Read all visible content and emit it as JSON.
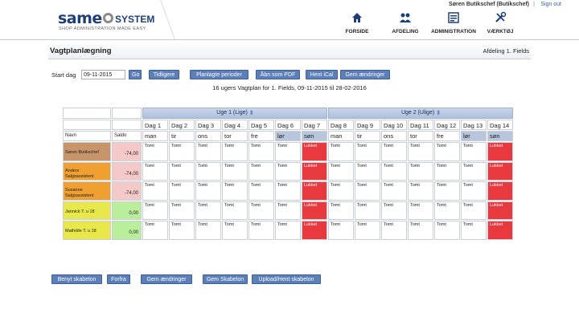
{
  "header": {
    "logo": {
      "brand_same": "same",
      "brand_system": "SYSTEM",
      "tagline": "SHOP ADMINISTRATION MADE EASY"
    },
    "user": "Søren Butikschef (Butikschef)",
    "separator": "|",
    "signout_label": "Sign out",
    "nav": [
      {
        "label": "FORSIDE",
        "icon": "home-icon"
      },
      {
        "label": "AFDELING",
        "icon": "people-icon"
      },
      {
        "label": "ADMINISTRATION",
        "icon": "admin-icon"
      },
      {
        "label": "VÆRKTØJ",
        "icon": "tools-icon"
      }
    ]
  },
  "page": {
    "title": "Vagtplanlægning",
    "department": "Afdeling 1. Fields"
  },
  "controls": {
    "start_label": "Start dag",
    "start_date": "09-11-2015",
    "go_label": "Go",
    "earlier_label": "Tidligere",
    "planned_periods_label": "Planlagte perioder",
    "open_pdf_label": "Åbn som PDF",
    "ical_label": "Hent iCal",
    "save_changes_label": "Gem ændringer",
    "caption": "16 ugers Vagtplan for 1. Fields, 09-11-2015 til 28-02-2016"
  },
  "grid": {
    "name_header": "Navn",
    "saldo_header": "Saldo",
    "weeks": [
      {
        "label": "Uge 1 (Lige)"
      },
      {
        "label": "Uge 2 (Ulige)"
      }
    ],
    "days": [
      "Dag 1",
      "Dag 2",
      "Dag 3",
      "Dag 4",
      "Dag 5",
      "Dag 6",
      "Dag 7",
      "Dag 8",
      "Dag 9",
      "Dag 10",
      "Dag 11",
      "Dag 12",
      "Dag 13",
      "Dag 14"
    ],
    "weekdays": [
      "man",
      "tir",
      "ons",
      "tor",
      "fre",
      "lør",
      "søn",
      "man",
      "tir",
      "ons",
      "tor",
      "fre",
      "lør",
      "søn"
    ],
    "empty_label": "Tomt",
    "closed_label": "Lukket",
    "employees": [
      {
        "name": "Søren Butikschef",
        "role": "",
        "saldo": "-74,00",
        "color": "#c8956b",
        "saldo_color": "#f6c9c9"
      },
      {
        "name": "Anders",
        "role": "Salgsassistent",
        "saldo": "-74,00",
        "color": "#f0a030",
        "saldo_color": "#f6c9c9"
      },
      {
        "name": "Susanne",
        "role": "Salgsassistent",
        "saldo": "-74,00",
        "color": "#f0a030",
        "saldo_color": "#f6c9c9"
      },
      {
        "name": "Jannick T. u 18",
        "role": "",
        "saldo": "0,00",
        "color": "#e8e84a",
        "saldo_color": "#b9ee9a"
      },
      {
        "name": "Mathilde T. u 18",
        "role": "",
        "saldo": "0,00",
        "color": "#e8e84a",
        "saldo_color": "#b9ee9a"
      }
    ]
  },
  "bottom_buttons": {
    "use_template": "Benyt skabelon",
    "previous": "Forfra",
    "save_changes": "Gem ændringer",
    "save_template": "Gem Skabelon",
    "upload_template": "Upload/Hent skabelon"
  },
  "colors": {
    "accent": "#5b7fb8",
    "closed": "#e8393f",
    "week_header": "#b7c5dd"
  }
}
